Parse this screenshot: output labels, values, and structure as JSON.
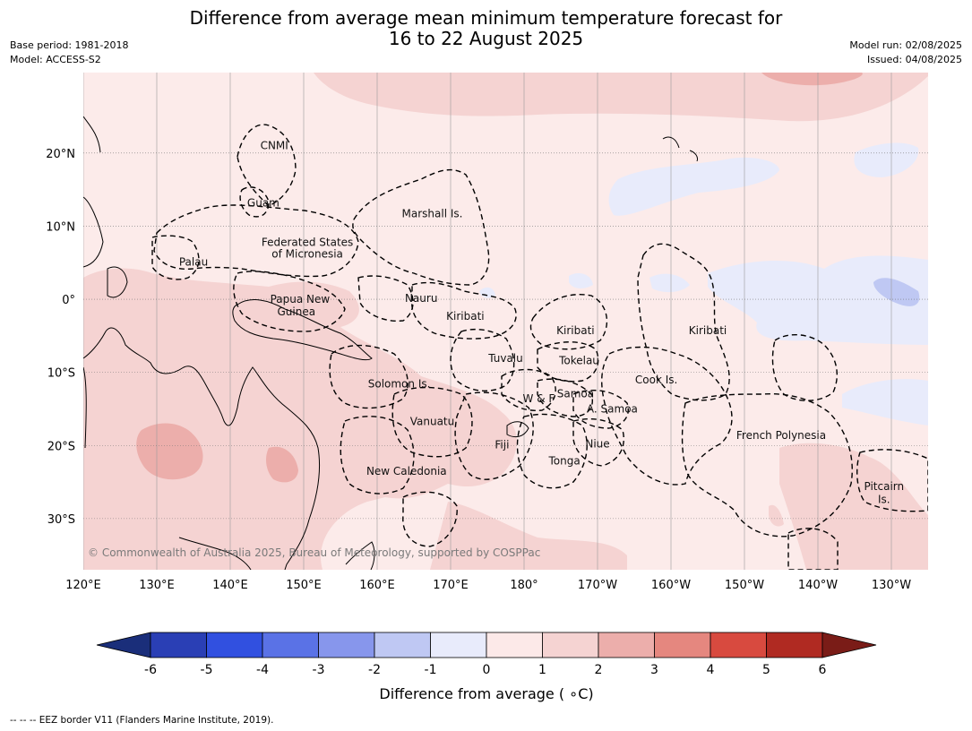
{
  "title": {
    "line1": "Difference from average mean minimum temperature forecast for",
    "line2": "16 to 22 August 2025"
  },
  "info_left": {
    "base_period": "Base period: 1981-2018",
    "model": "Model: ACCESS-S2"
  },
  "info_right": {
    "model_run": "Model run: 02/08/2025",
    "issued": "Issued: 04/08/2025"
  },
  "axes": {
    "lon_ticks": [
      "120°E",
      "130°E",
      "140°E",
      "150°E",
      "160°E",
      "170°E",
      "180°",
      "170°W",
      "160°W",
      "150°W",
      "140°W",
      "130°W"
    ],
    "lat_ticks": [
      "20°N",
      "10°N",
      "0°",
      "10°S",
      "20°S",
      "30°S"
    ],
    "lon_range": [
      120,
      235
    ],
    "lat_range": [
      -37,
      31
    ]
  },
  "regions": [
    {
      "name": "CNMI",
      "lon": 146,
      "lat": 21
    },
    {
      "name": "Guam",
      "lon": 144.5,
      "lat": 13.2
    },
    {
      "name": "Marshall Is.",
      "lon": 167.5,
      "lat": 11.7
    },
    {
      "name": "Federated States",
      "lon": 150.5,
      "lat": 7.8
    },
    {
      "name": "of Micronesia",
      "lon": 150.5,
      "lat": 6.2
    },
    {
      "name": "Palau",
      "lon": 135,
      "lat": 5.1
    },
    {
      "name": "Papua New",
      "lon": 149.5,
      "lat": 0.0
    },
    {
      "name": "Guinea",
      "lon": 149,
      "lat": -1.7
    },
    {
      "name": "Nauru",
      "lon": 166,
      "lat": 0.1
    },
    {
      "name": "Kiribati",
      "lon": 172,
      "lat": -2.3
    },
    {
      "name": "Kiribati",
      "lon": 187,
      "lat": -4.3
    },
    {
      "name": "Kiribati",
      "lon": 205,
      "lat": -4.3
    },
    {
      "name": "Tuvalu",
      "lon": 177.5,
      "lat": -8.1
    },
    {
      "name": "Tokelau",
      "lon": 187.5,
      "lat": -8.4
    },
    {
      "name": "Cook Is.",
      "lon": 198,
      "lat": -11
    },
    {
      "name": "Solomon Is.",
      "lon": 163,
      "lat": -11.6
    },
    {
      "name": "Samoa",
      "lon": 187,
      "lat": -12.9
    },
    {
      "name": "W & F",
      "lon": 182,
      "lat": -13.6
    },
    {
      "name": "A. Samoa",
      "lon": 192,
      "lat": -15
    },
    {
      "name": "Vanuatu",
      "lon": 167.5,
      "lat": -16.7
    },
    {
      "name": "Fiji",
      "lon": 177,
      "lat": -19.9
    },
    {
      "name": "Niue",
      "lon": 190,
      "lat": -19.8
    },
    {
      "name": "Tonga",
      "lon": 185.5,
      "lat": -22.1
    },
    {
      "name": "French Polynesia",
      "lon": 215,
      "lat": -18.6
    },
    {
      "name": "New Caledonia",
      "lon": 164,
      "lat": -23.5
    },
    {
      "name": "Pitcairn",
      "lon": 229,
      "lat": -25.6
    },
    {
      "name": "Is.",
      "lon": 229,
      "lat": -27.4
    }
  ],
  "copyright": "© Commonwealth of Australia 2025, Bureau of Meteorology, supported by COSPPac",
  "colorbar": {
    "label": "Difference from average ( ∘C)",
    "ticks": [
      "-6",
      "-5",
      "-4",
      "-3",
      "-2",
      "-1",
      "0",
      "1",
      "2",
      "3",
      "4",
      "5",
      "6"
    ],
    "colors": [
      "#1a2e7a",
      "#2a3fb5",
      "#3150e0",
      "#5a72e6",
      "#8796ec",
      "#bfc8f3",
      "#e8ebfb",
      "#fce9e8",
      "#f5d3d2",
      "#ecaeab",
      "#e5877f",
      "#d84a3f",
      "#b02a22",
      "#7a1c17"
    ]
  },
  "footer": "--  --  -- EEZ border V11 (Flanders Marine Institute, 2019)."
}
